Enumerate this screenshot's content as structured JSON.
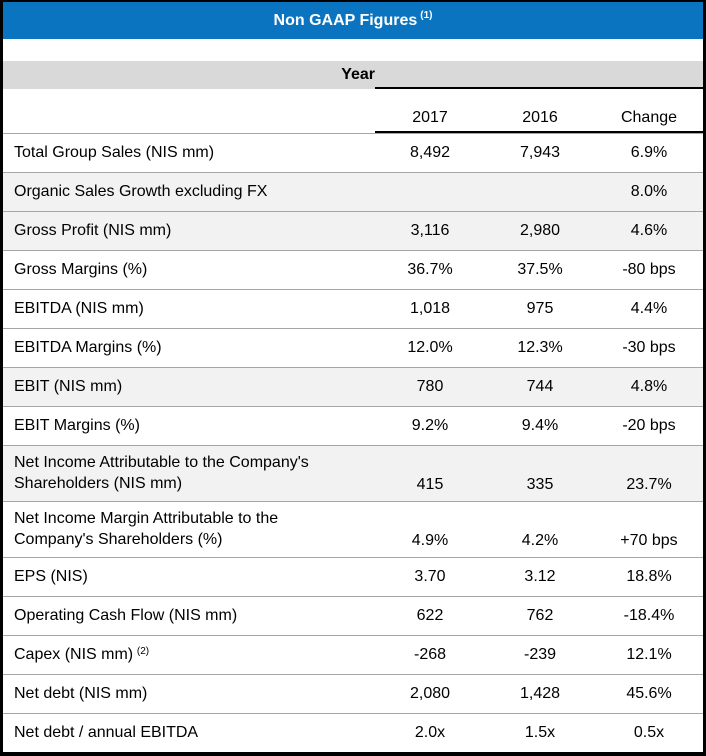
{
  "title": {
    "text": "Non GAAP Figures",
    "superscript": "(1)"
  },
  "year_band_label": "Year",
  "columns": [
    "2017",
    "2016",
    "Change"
  ],
  "rows": [
    {
      "label": "Total Group Sales (NIS mm)",
      "v2017": "8,492",
      "v2016": "7,943",
      "change": "6.9%",
      "shaded": false
    },
    {
      "label": "Organic Sales Growth excluding FX",
      "v2017": "",
      "v2016": "",
      "change": "8.0%",
      "shaded": true
    },
    {
      "label": "Gross Profit (NIS mm)",
      "v2017": "3,116",
      "v2016": "2,980",
      "change": "4.6%",
      "shaded": true
    },
    {
      "label": "Gross Margins (%)",
      "v2017": "36.7%",
      "v2016": "37.5%",
      "change": "-80 bps",
      "shaded": false
    },
    {
      "label": "EBITDA (NIS mm)",
      "v2017": "1,018",
      "v2016": "975",
      "change": "4.4%",
      "shaded": false
    },
    {
      "label": "EBITDA Margins (%)",
      "v2017": "12.0%",
      "v2016": "12.3%",
      "change": "-30 bps",
      "shaded": false
    },
    {
      "label": "EBIT (NIS mm)",
      "v2017": "780",
      "v2016": "744",
      "change": "4.8%",
      "shaded": true
    },
    {
      "label": "EBIT Margins (%)",
      "v2017": "9.2%",
      "v2016": "9.4%",
      "change": "-20 bps",
      "shaded": false
    },
    {
      "label": "Net Income Attributable to the Company's",
      "label2": "Shareholders (NIS mm)",
      "v2017": "415",
      "v2016": "335",
      "change": "23.7%",
      "shaded": true
    },
    {
      "label": "Net Income Margin Attributable to the",
      "label2": "Company's Shareholders (%)",
      "v2017": "4.9%",
      "v2016": "4.2%",
      "change": "+70 bps",
      "shaded": false
    },
    {
      "label": "EPS (NIS)",
      "v2017": "3.70",
      "v2016": "3.12",
      "change": "18.8%",
      "shaded": false
    },
    {
      "label": "Operating Cash Flow (NIS mm)",
      "v2017": "622",
      "v2016": "762",
      "change": "-18.4%",
      "shaded": false
    },
    {
      "label": "Capex (NIS mm)",
      "label_sup": "(2)",
      "v2017": "-268",
      "v2016": "-239",
      "change": "12.1%",
      "shaded": false
    },
    {
      "label": "Net debt (NIS mm)",
      "v2017": "2,080",
      "v2016": "1,428",
      "change": "45.6%",
      "shaded": false
    },
    {
      "label": "Net debt / annual EBITDA",
      "v2017": "2.0x",
      "v2016": "1.5x",
      "change": "0.5x",
      "shaded": false
    }
  ],
  "colors": {
    "header_blue": "#0B74C1",
    "header_text": "#FFFFFF",
    "year_band_gray": "#D9D9D9",
    "shaded_row_gray": "#F2F2F2",
    "separator_gray": "#A6A6A6",
    "line_black": "#000000"
  }
}
